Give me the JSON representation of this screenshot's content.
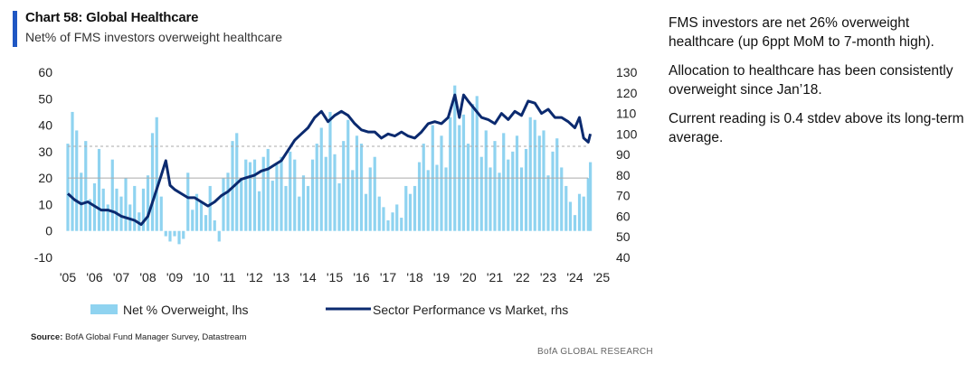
{
  "header": {
    "title": "Chart 58: Global Healthcare",
    "subtitle": "Net% of FMS investors overweight healthcare"
  },
  "commentary": [
    "FMS investors are net 26% overweight healthcare (up 6ppt MoM to 7-month high).",
    "Allocation to healthcare has been consistently overweight since Jan’18.",
    "Current reading is 0.4 stdev above its long-term average."
  ],
  "footer": {
    "source_label": "Source:",
    "source_text": " BofA Global Fund Manager Survey, Datastream",
    "brand": "BofA GLOBAL RESEARCH"
  },
  "colors": {
    "bars": "#8fd3f0",
    "line": "#0b2a6f",
    "reference_line": "#aaaaaa",
    "accent": "#1f57c3"
  },
  "chart_data": {
    "type": "bar+line",
    "title": "Chart 58: Global Healthcare",
    "subtitle": "Net% of FMS investors overweight healthcare",
    "x_ticks": [
      "'05",
      "'06",
      "'07",
      "'08",
      "'09",
      "'10",
      "'11",
      "'12",
      "'13",
      "'14",
      "'15",
      "'16",
      "'17",
      "'18",
      "'19",
      "'20",
      "'21",
      "'22",
      "'23",
      "'24",
      "'25"
    ],
    "x_range": [
      2005.0,
      2025.0
    ],
    "y_left": {
      "range": [
        -10,
        60
      ],
      "ticks": [
        60,
        50,
        40,
        30,
        20,
        10,
        0,
        -10
      ]
    },
    "y_right": {
      "range": [
        40,
        130
      ],
      "ticks": [
        130,
        120,
        110,
        100,
        90,
        80,
        70,
        60,
        50,
        40
      ]
    },
    "reference_lines_lhs": [
      32,
      20
    ],
    "grid": false,
    "legend_position": "bottom",
    "series": [
      {
        "name": "Net % Overweight, lhs",
        "type": "bar",
        "axis": "left",
        "points": [
          [
            2005.0,
            33
          ],
          [
            2005.17,
            45
          ],
          [
            2005.33,
            38
          ],
          [
            2005.5,
            22
          ],
          [
            2005.67,
            34
          ],
          [
            2005.83,
            12
          ],
          [
            2006.0,
            18
          ],
          [
            2006.17,
            31
          ],
          [
            2006.33,
            16
          ],
          [
            2006.5,
            10
          ],
          [
            2006.67,
            27
          ],
          [
            2006.83,
            16
          ],
          [
            2007.0,
            13
          ],
          [
            2007.17,
            20
          ],
          [
            2007.33,
            10
          ],
          [
            2007.5,
            17
          ],
          [
            2007.67,
            7
          ],
          [
            2007.83,
            16
          ],
          [
            2008.0,
            21
          ],
          [
            2008.17,
            37
          ],
          [
            2008.33,
            43
          ],
          [
            2008.5,
            13
          ],
          [
            2008.67,
            -2
          ],
          [
            2008.83,
            -4
          ],
          [
            2009.0,
            -2
          ],
          [
            2009.17,
            -5
          ],
          [
            2009.33,
            -3
          ],
          [
            2009.5,
            22
          ],
          [
            2009.67,
            8
          ],
          [
            2009.83,
            14
          ],
          [
            2010.0,
            11
          ],
          [
            2010.17,
            6
          ],
          [
            2010.33,
            17
          ],
          [
            2010.5,
            4
          ],
          [
            2010.67,
            -4
          ],
          [
            2010.83,
            20
          ],
          [
            2011.0,
            22
          ],
          [
            2011.17,
            34
          ],
          [
            2011.33,
            37
          ],
          [
            2011.5,
            20
          ],
          [
            2011.67,
            27
          ],
          [
            2011.83,
            26
          ],
          [
            2012.0,
            27
          ],
          [
            2012.17,
            15
          ],
          [
            2012.33,
            28
          ],
          [
            2012.5,
            31
          ],
          [
            2012.67,
            19
          ],
          [
            2012.83,
            25
          ],
          [
            2013.0,
            28
          ],
          [
            2013.17,
            17
          ],
          [
            2013.33,
            30
          ],
          [
            2013.5,
            27
          ],
          [
            2013.67,
            13
          ],
          [
            2013.83,
            21
          ],
          [
            2014.0,
            17
          ],
          [
            2014.17,
            27
          ],
          [
            2014.33,
            33
          ],
          [
            2014.5,
            39
          ],
          [
            2014.67,
            28
          ],
          [
            2014.83,
            45
          ],
          [
            2015.0,
            29
          ],
          [
            2015.17,
            18
          ],
          [
            2015.33,
            34
          ],
          [
            2015.5,
            42
          ],
          [
            2015.67,
            23
          ],
          [
            2015.83,
            36
          ],
          [
            2016.0,
            33
          ],
          [
            2016.17,
            14
          ],
          [
            2016.33,
            24
          ],
          [
            2016.5,
            28
          ],
          [
            2016.67,
            13
          ],
          [
            2016.83,
            9
          ],
          [
            2017.0,
            4
          ],
          [
            2017.17,
            7
          ],
          [
            2017.33,
            10
          ],
          [
            2017.5,
            5
          ],
          [
            2017.67,
            17
          ],
          [
            2017.83,
            14
          ],
          [
            2018.0,
            17
          ],
          [
            2018.17,
            26
          ],
          [
            2018.33,
            33
          ],
          [
            2018.5,
            23
          ],
          [
            2018.67,
            40
          ],
          [
            2018.83,
            25
          ],
          [
            2019.0,
            36
          ],
          [
            2019.17,
            24
          ],
          [
            2019.33,
            43
          ],
          [
            2019.5,
            55
          ],
          [
            2019.67,
            40
          ],
          [
            2019.83,
            44
          ],
          [
            2020.0,
            33
          ],
          [
            2020.17,
            48
          ],
          [
            2020.33,
            51
          ],
          [
            2020.5,
            28
          ],
          [
            2020.67,
            38
          ],
          [
            2020.83,
            24
          ],
          [
            2021.0,
            34
          ],
          [
            2021.17,
            22
          ],
          [
            2021.33,
            37
          ],
          [
            2021.5,
            27
          ],
          [
            2021.67,
            30
          ],
          [
            2021.83,
            36
          ],
          [
            2022.0,
            24
          ],
          [
            2022.17,
            31
          ],
          [
            2022.33,
            43
          ],
          [
            2022.5,
            42
          ],
          [
            2022.67,
            36
          ],
          [
            2022.83,
            38
          ],
          [
            2023.0,
            21
          ],
          [
            2023.17,
            30
          ],
          [
            2023.33,
            35
          ],
          [
            2023.5,
            24
          ],
          [
            2023.67,
            17
          ],
          [
            2023.83,
            11
          ],
          [
            2024.0,
            6
          ],
          [
            2024.17,
            14
          ],
          [
            2024.33,
            13
          ],
          [
            2024.5,
            20
          ],
          [
            2024.58,
            26
          ]
        ]
      },
      {
        "name": "Sector Performance vs Market, rhs",
        "type": "line",
        "axis": "right",
        "points": [
          [
            2005.0,
            71
          ],
          [
            2005.25,
            68
          ],
          [
            2005.5,
            66
          ],
          [
            2005.75,
            67
          ],
          [
            2006.0,
            65
          ],
          [
            2006.25,
            63
          ],
          [
            2006.5,
            63
          ],
          [
            2006.75,
            62
          ],
          [
            2007.0,
            60
          ],
          [
            2007.25,
            59
          ],
          [
            2007.5,
            58
          ],
          [
            2007.75,
            56
          ],
          [
            2008.0,
            60
          ],
          [
            2008.25,
            70
          ],
          [
            2008.5,
            80
          ],
          [
            2008.67,
            87
          ],
          [
            2008.83,
            75
          ],
          [
            2009.0,
            73
          ],
          [
            2009.25,
            71
          ],
          [
            2009.5,
            69
          ],
          [
            2009.75,
            69
          ],
          [
            2010.0,
            67
          ],
          [
            2010.25,
            65
          ],
          [
            2010.5,
            67
          ],
          [
            2010.75,
            70
          ],
          [
            2011.0,
            72
          ],
          [
            2011.25,
            75
          ],
          [
            2011.5,
            78
          ],
          [
            2011.75,
            79
          ],
          [
            2012.0,
            80
          ],
          [
            2012.25,
            82
          ],
          [
            2012.5,
            83
          ],
          [
            2012.75,
            85
          ],
          [
            2013.0,
            87
          ],
          [
            2013.25,
            92
          ],
          [
            2013.5,
            97
          ],
          [
            2013.75,
            100
          ],
          [
            2014.0,
            103
          ],
          [
            2014.25,
            108
          ],
          [
            2014.5,
            111
          ],
          [
            2014.75,
            106
          ],
          [
            2015.0,
            109
          ],
          [
            2015.25,
            111
          ],
          [
            2015.5,
            109
          ],
          [
            2015.75,
            105
          ],
          [
            2016.0,
            102
          ],
          [
            2016.25,
            101
          ],
          [
            2016.5,
            101
          ],
          [
            2016.75,
            98
          ],
          [
            2017.0,
            100
          ],
          [
            2017.25,
            99
          ],
          [
            2017.5,
            101
          ],
          [
            2017.75,
            99
          ],
          [
            2018.0,
            98
          ],
          [
            2018.25,
            101
          ],
          [
            2018.5,
            105
          ],
          [
            2018.75,
            106
          ],
          [
            2019.0,
            105
          ],
          [
            2019.25,
            108
          ],
          [
            2019.5,
            119
          ],
          [
            2019.67,
            108
          ],
          [
            2019.83,
            119
          ],
          [
            2020.0,
            116
          ],
          [
            2020.25,
            112
          ],
          [
            2020.5,
            108
          ],
          [
            2020.75,
            107
          ],
          [
            2021.0,
            105
          ],
          [
            2021.25,
            110
          ],
          [
            2021.5,
            107
          ],
          [
            2021.75,
            111
          ],
          [
            2022.0,
            109
          ],
          [
            2022.25,
            116
          ],
          [
            2022.5,
            115
          ],
          [
            2022.75,
            110
          ],
          [
            2023.0,
            112
          ],
          [
            2023.25,
            108
          ],
          [
            2023.5,
            108
          ],
          [
            2023.75,
            106
          ],
          [
            2024.0,
            103
          ],
          [
            2024.17,
            108
          ],
          [
            2024.33,
            98
          ],
          [
            2024.5,
            96
          ],
          [
            2024.58,
            100
          ]
        ]
      }
    ]
  }
}
